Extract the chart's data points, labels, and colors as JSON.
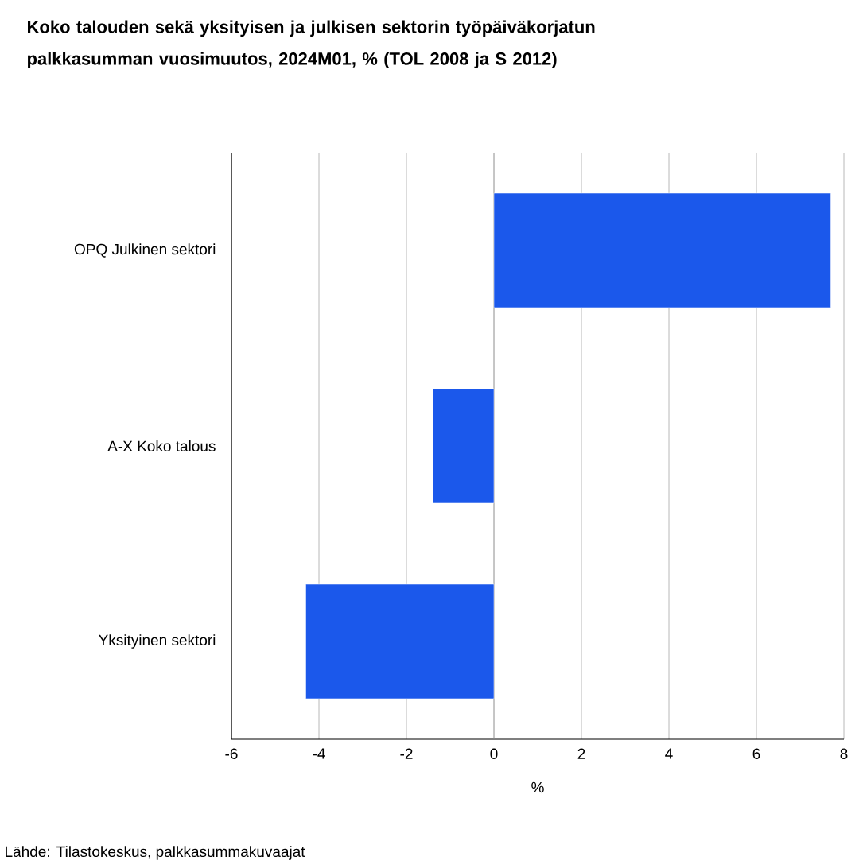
{
  "chart_data": {
    "type": "bar",
    "orientation": "horizontal",
    "title": "Koko talouden sekä yksityisen ja julkisen sektorin työpäiväkorjatun palkkasumman vuosimuutos, 2024M01, % (TOL 2008 ja S 2012)",
    "categories": [
      "OPQ Julkinen sektori",
      "A-X Koko talous",
      "Yksityinen sektori"
    ],
    "values": [
      7.7,
      -1.4,
      -4.3
    ],
    "color": "#1b58eb",
    "xlim": [
      -6,
      8
    ],
    "xticks": [
      -6,
      -4,
      -2,
      0,
      2,
      4,
      6,
      8
    ],
    "xlabel": "%",
    "grid": "x",
    "annotations": [
      "Lähde: Tilastokeskus, palkkasummakuvaajat"
    ]
  }
}
